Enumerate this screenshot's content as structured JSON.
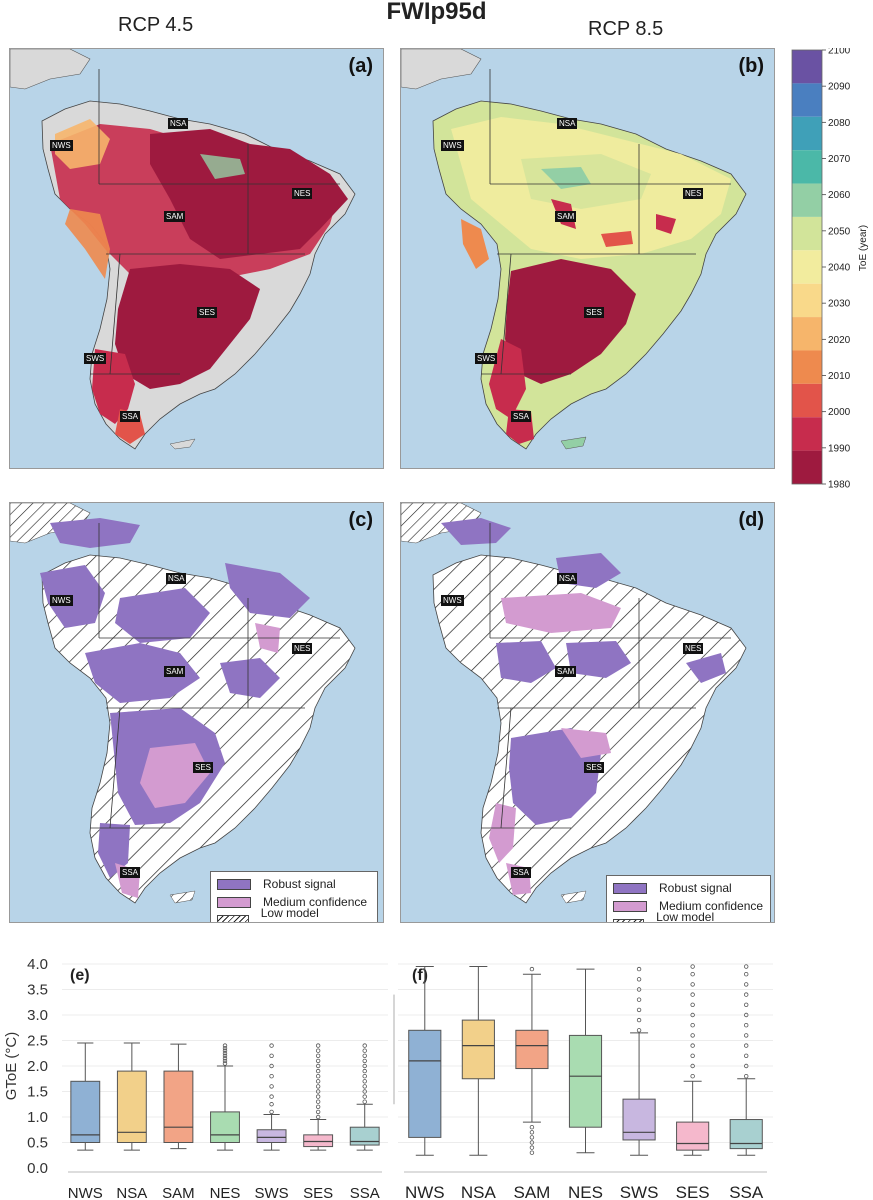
{
  "title": "FWIp95d",
  "scenarios": {
    "left": "RCP 4.5",
    "right": "RCP 8.5"
  },
  "panels": {
    "a": "(a)",
    "b": "(b)",
    "c": "(c)",
    "d": "(d)"
  },
  "regions": [
    "NWS",
    "NSA",
    "SAM",
    "NES",
    "SWS",
    "SES",
    "SSA"
  ],
  "colorbar": {
    "label": "ToE (year)",
    "ticks": [
      "2100",
      "2090",
      "2080",
      "2070",
      "2060",
      "2050",
      "2040",
      "2030",
      "2020",
      "2010",
      "2000",
      "1990",
      "1980"
    ],
    "colors": [
      "#6a52a3",
      "#4a7fc0",
      "#3fa0b8",
      "#4bb8a8",
      "#93cfa5",
      "#d2e49a",
      "#f2ec9e",
      "#f9d98a",
      "#f6b56b",
      "#ee8a4e",
      "#e2544a",
      "#c72c4d",
      "#9e1a3f"
    ]
  },
  "legend": {
    "items": [
      {
        "label": "Robust signal",
        "color": "#8f74c2",
        "hatch": false
      },
      {
        "label": "Medium confidence",
        "color": "#d39bd0",
        "hatch": false
      },
      {
        "label": "Low model agreement",
        "color": "#ffffff",
        "hatch": true
      }
    ]
  },
  "chart_data": [
    {
      "type": "box",
      "panel": "(e)",
      "scenario": "RCP 4.5",
      "ylabel": "GToE (°C)",
      "ylim": [
        0.0,
        4.0
      ],
      "yticks": [
        "0.0",
        "0.5",
        "1.0",
        "1.5",
        "2.0",
        "2.5",
        "3.0",
        "3.5",
        "4.0"
      ],
      "categories": [
        "NWS",
        "NSA",
        "SAM",
        "NES",
        "SWS",
        "SES",
        "SSA"
      ],
      "colors": [
        "#8fb1d4",
        "#f2d08a",
        "#f2a486",
        "#a9dcb1",
        "#c8b7e0",
        "#f5b8cc",
        "#a8d0d0"
      ],
      "boxes": [
        {
          "min": 0.35,
          "q1": 0.5,
          "median": 0.65,
          "q3": 1.7,
          "max": 2.45,
          "outliers": []
        },
        {
          "min": 0.35,
          "q1": 0.5,
          "median": 0.7,
          "q3": 1.9,
          "max": 2.45,
          "outliers": []
        },
        {
          "min": 0.38,
          "q1": 0.5,
          "median": 0.8,
          "q3": 1.9,
          "max": 2.43,
          "outliers": []
        },
        {
          "min": 0.35,
          "q1": 0.5,
          "median": 0.65,
          "q3": 1.1,
          "max": 2.0,
          "outliers": [
            2.05,
            2.1,
            2.15,
            2.2,
            2.25,
            2.3,
            2.35,
            2.4
          ]
        },
        {
          "min": 0.35,
          "q1": 0.5,
          "median": 0.6,
          "q3": 0.75,
          "max": 1.05,
          "outliers": [
            1.1,
            1.25,
            1.4,
            1.6,
            1.8,
            2.0,
            2.2,
            2.4
          ]
        },
        {
          "min": 0.35,
          "q1": 0.42,
          "median": 0.52,
          "q3": 0.65,
          "max": 0.95,
          "outliers": [
            1.0,
            1.1,
            1.2,
            1.3,
            1.4,
            1.5,
            1.6,
            1.7,
            1.8,
            1.9,
            2.0,
            2.1,
            2.2,
            2.3,
            2.4
          ]
        },
        {
          "min": 0.35,
          "q1": 0.45,
          "median": 0.52,
          "q3": 0.8,
          "max": 1.25,
          "outliers": [
            1.3,
            1.4,
            1.5,
            1.6,
            1.7,
            1.8,
            1.9,
            2.0,
            2.1,
            2.2,
            2.3,
            2.4
          ]
        }
      ]
    },
    {
      "type": "box",
      "panel": "(f)",
      "scenario": "RCP 8.5",
      "ylim": [
        0.0,
        4.0
      ],
      "categories": [
        "NWS",
        "NSA",
        "SAM",
        "NES",
        "SWS",
        "SES",
        "SSA"
      ],
      "colors": [
        "#8fb1d4",
        "#f2d08a",
        "#f2a486",
        "#a9dcb1",
        "#c8b7e0",
        "#f5b8cc",
        "#a8d0d0"
      ],
      "boxes": [
        {
          "min": 0.25,
          "q1": 0.6,
          "median": 2.1,
          "q3": 2.7,
          "max": 3.95,
          "outliers": []
        },
        {
          "min": 0.25,
          "q1": 1.75,
          "median": 2.4,
          "q3": 2.9,
          "max": 3.95,
          "outliers": []
        },
        {
          "min": 0.9,
          "q1": 1.95,
          "median": 2.4,
          "q3": 2.7,
          "max": 3.8,
          "outliers": [
            0.3,
            0.4,
            0.5,
            0.6,
            0.7,
            0.8,
            3.9
          ]
        },
        {
          "min": 0.3,
          "q1": 0.8,
          "median": 1.8,
          "q3": 2.6,
          "max": 3.9,
          "outliers": []
        },
        {
          "min": 0.25,
          "q1": 0.55,
          "median": 0.7,
          "q3": 1.35,
          "max": 2.65,
          "outliers": [
            2.7,
            2.9,
            3.1,
            3.3,
            3.5,
            3.7,
            3.9
          ]
        },
        {
          "min": 0.25,
          "q1": 0.35,
          "median": 0.48,
          "q3": 0.9,
          "max": 1.7,
          "outliers": [
            1.8,
            2.0,
            2.2,
            2.4,
            2.6,
            2.8,
            3.0,
            3.2,
            3.4,
            3.6,
            3.8,
            3.95
          ]
        },
        {
          "min": 0.25,
          "q1": 0.38,
          "median": 0.48,
          "q3": 0.95,
          "max": 1.75,
          "outliers": [
            1.8,
            2.0,
            2.2,
            2.4,
            2.6,
            2.8,
            3.0,
            3.2,
            3.4,
            3.6,
            3.8,
            3.95
          ]
        }
      ]
    }
  ]
}
